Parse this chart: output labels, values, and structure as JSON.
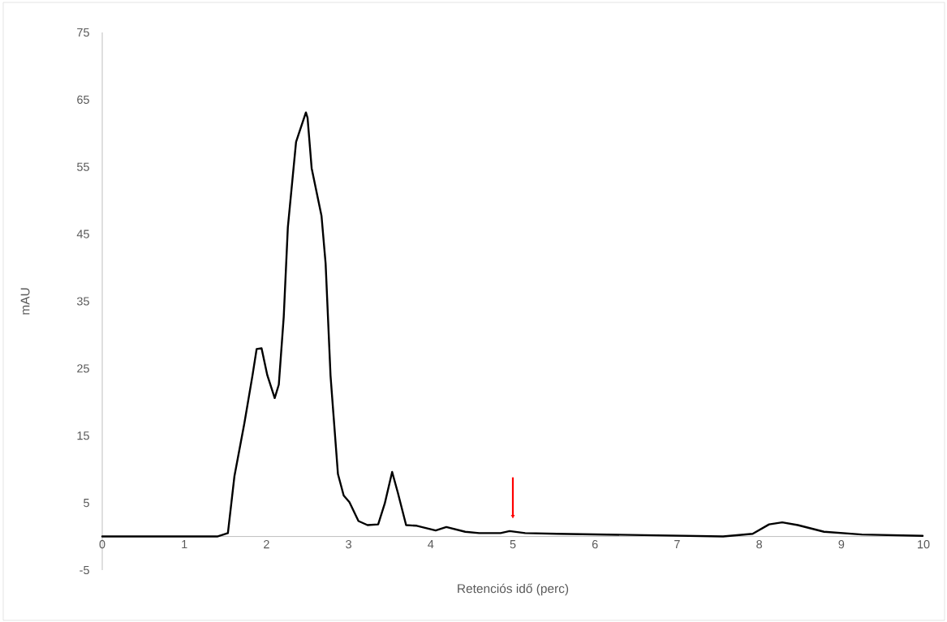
{
  "chart_data": {
    "type": "line",
    "xlabel": "Retenciós idő (perc)",
    "ylabel": "mAU",
    "xlim": [
      0,
      10
    ],
    "ylim": [
      -5,
      75
    ],
    "xticks": [
      0,
      1,
      2,
      3,
      4,
      5,
      6,
      7,
      8,
      9,
      10
    ],
    "yticks": [
      -5,
      5,
      15,
      25,
      35,
      45,
      55,
      65,
      75
    ],
    "series": [
      {
        "color": "#000000",
        "x": [
          0,
          0.5,
          1.0,
          1.4,
          1.53,
          1.61,
          1.73,
          1.83,
          1.88,
          1.94,
          2.01,
          2.1,
          2.15,
          2.21,
          2.26,
          2.36,
          2.39,
          2.48,
          2.5,
          2.55,
          2.67,
          2.72,
          2.78,
          2.87,
          2.94,
          3.01,
          3.12,
          3.23,
          3.36,
          3.44,
          3.53,
          3.6,
          3.7,
          3.83,
          4.06,
          4.19,
          4.42,
          4.59,
          4.85,
          4.96,
          5.15,
          5.54,
          6.6,
          7.56,
          7.92,
          8.12,
          8.28,
          8.47,
          8.79,
          9.25,
          9.99
        ],
        "values": [
          0,
          0,
          0,
          0,
          0.5,
          9,
          16.8,
          24,
          27.9,
          28,
          24,
          20.6,
          22.6,
          32.7,
          46,
          58.7,
          59.8,
          63.1,
          62.3,
          54.8,
          47.7,
          40.6,
          23.9,
          9.3,
          6.1,
          5.1,
          2.3,
          1.7,
          1.8,
          4.9,
          9.6,
          6.5,
          1.7,
          1.6,
          0.9,
          1.4,
          0.7,
          0.5,
          0.5,
          0.8,
          0.5,
          0.4,
          0.2,
          0,
          0.4,
          1.8,
          2.1,
          1.7,
          0.7,
          0.3,
          0.1
        ]
      }
    ]
  }
}
